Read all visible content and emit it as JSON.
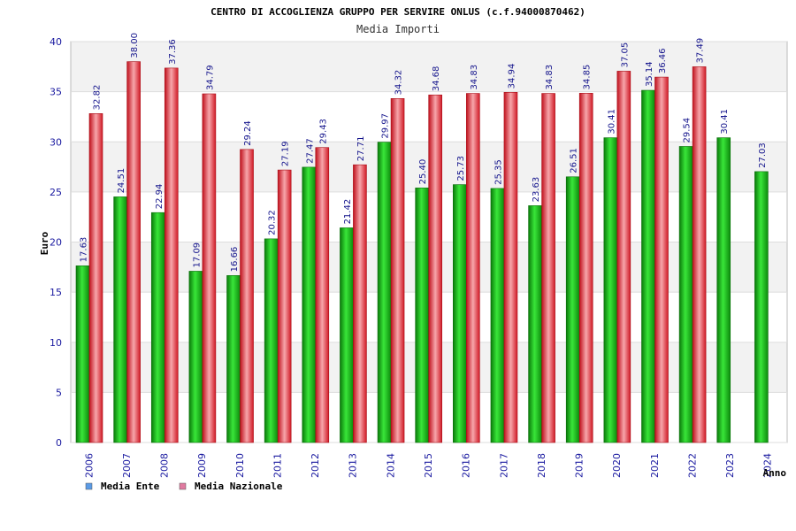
{
  "chart_data": {
    "type": "bar",
    "title": "CENTRO DI ACCOGLIENZA GRUPPO PER SERVIRE ONLUS (c.f.94000870462)",
    "subtitle": "Media Importi",
    "xlabel": "Anno",
    "ylabel": "Euro",
    "ylim": [
      0,
      40
    ],
    "yticks": [
      0,
      5,
      10,
      15,
      20,
      25,
      30,
      35,
      40
    ],
    "grid": true,
    "legend_position": "bottom-left",
    "categories": [
      "2006",
      "2007",
      "2008",
      "2009",
      "2010",
      "2011",
      "2012",
      "2013",
      "2014",
      "2015",
      "2016",
      "2017",
      "2018",
      "2019",
      "2020",
      "2021",
      "2022",
      "2023",
      "2024"
    ],
    "series": [
      {
        "name": "Media Ente",
        "color": "#1fb51f",
        "legend_color": "#5b9be6",
        "values": [
          17.63,
          24.51,
          22.94,
          17.09,
          16.66,
          20.32,
          27.47,
          21.42,
          29.97,
          25.4,
          25.73,
          25.35,
          23.63,
          26.51,
          30.41,
          35.14,
          29.54,
          30.41,
          27.03
        ],
        "labels": [
          "17.63",
          "24.51",
          "22.94",
          "17.09",
          "16.66",
          "20.32",
          "27.47",
          "21.42",
          "29.97",
          "25.40",
          "25.73",
          "25.35",
          "23.63",
          "26.51",
          "30.41",
          "35.14",
          "29.54",
          "30.41",
          "27.03"
        ]
      },
      {
        "name": "Media Nazionale",
        "color": "#e8323c",
        "legend_color": "#e07aa0",
        "values": [
          32.82,
          38.0,
          37.36,
          34.79,
          29.24,
          27.19,
          29.43,
          27.71,
          34.32,
          34.68,
          34.83,
          34.94,
          34.83,
          34.85,
          37.05,
          36.46,
          37.49,
          null,
          null
        ],
        "labels": [
          "32.82",
          "38.00",
          "37.36",
          "34.79",
          "29.24",
          "27.19",
          "29.43",
          "27.71",
          "34.32",
          "34.68",
          "34.83",
          "34.94",
          "34.83",
          "34.85",
          "37.05",
          "36.46",
          "37.49",
          "",
          ""
        ]
      }
    ]
  }
}
